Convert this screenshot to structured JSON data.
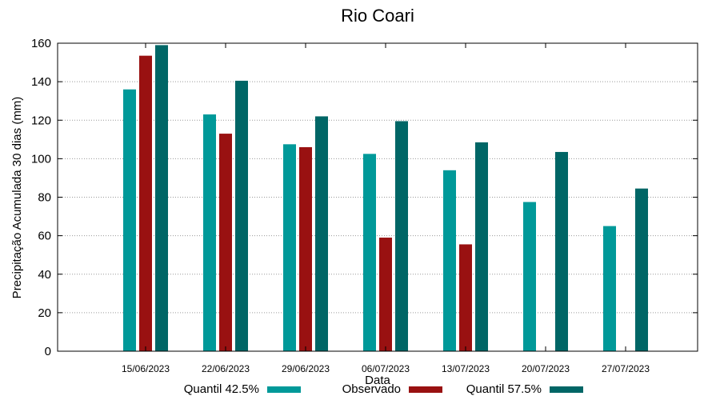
{
  "chart_data": {
    "type": "bar",
    "title": "Rio Coari",
    "xlabel": "Data",
    "ylabel": "Precipitação Acumulada 30 dias (mm)",
    "ylim": [
      0,
      160
    ],
    "yticks": [
      0,
      20,
      40,
      60,
      80,
      100,
      120,
      140,
      160
    ],
    "grid": true,
    "legend_position": "bottom",
    "categories": [
      "15/06/2023",
      "22/06/2023",
      "29/06/2023",
      "06/07/2023",
      "13/07/2023",
      "20/07/2023",
      "27/07/2023"
    ],
    "series": [
      {
        "name": "Quantil 42.5%",
        "color": "#009999",
        "values": [
          136,
          123,
          107.5,
          102.5,
          94,
          77.5,
          65
        ]
      },
      {
        "name": "Observado",
        "color": "#991111",
        "values": [
          153.5,
          113,
          106,
          59,
          55.5,
          null,
          null
        ]
      },
      {
        "name": "Quantil 57.5%",
        "color": "#006666",
        "values": [
          159,
          140.5,
          122,
          119.5,
          108.5,
          103.5,
          84.5
        ]
      }
    ]
  }
}
